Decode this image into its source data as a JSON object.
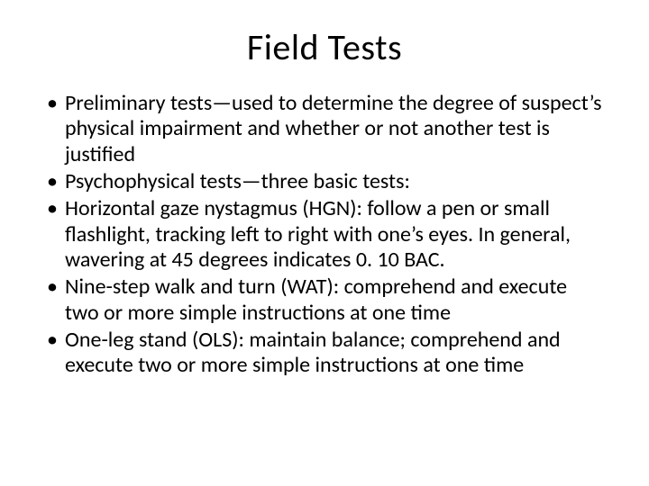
{
  "title": "Field Tests",
  "bullets": [
    "Preliminary tests—used to determine the degree of suspect’s physical impairment and whether or not another test is justified",
    "Psychophysical tests—three basic tests:",
    "Horizontal gaze nystagmus (HGN): follow a pen or small flashlight, tracking left to right with one’s eyes. In general, wavering at 45 degrees indicates 0. 10 BAC.",
    "Nine-step walk and turn (WAT): comprehend and execute two or more simple instructions at one time",
    "One-leg stand (OLS): maintain balance; comprehend and execute two or more simple instructions at one time"
  ]
}
